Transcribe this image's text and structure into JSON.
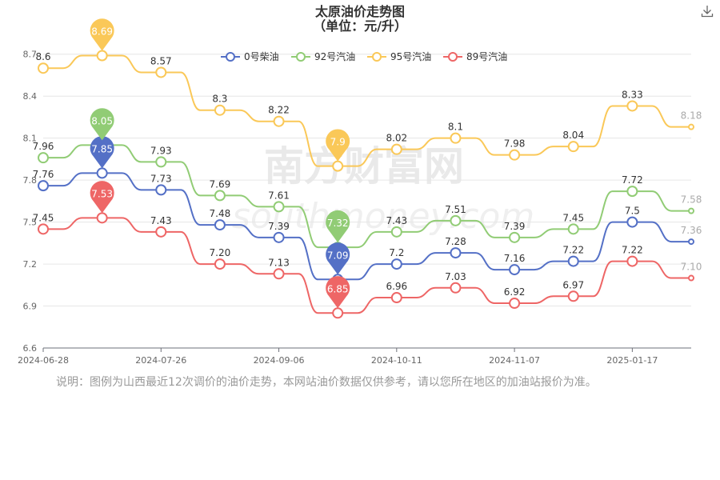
{
  "chart_data": {
    "type": "line",
    "title": "太原油价走势图",
    "subtitle": "（单位：元/升）",
    "x_tick_labels": [
      "2024-06-28",
      "2024-07-26",
      "2024-09-06",
      "2024-10-11",
      "2024-11-07",
      "2025-01-17"
    ],
    "y_ticks": [
      "6.6",
      "6.9",
      "7.2",
      "7.5",
      "7.8",
      "8.1",
      "8.4",
      "8.7"
    ],
    "ylim": [
      6.6,
      8.75
    ],
    "legend_position": "top",
    "series": [
      {
        "name": "0号柴油",
        "color": "#5470c6",
        "values": [
          7.76,
          7.85,
          7.73,
          7.48,
          7.39,
          7.09,
          7.2,
          7.28,
          7.16,
          7.22,
          7.5,
          7.36
        ],
        "labels": [
          "7.76",
          "7.85",
          "7.73",
          "7.48",
          "7.39",
          "7.09",
          "7.2",
          "7.28",
          "7.16",
          "7.22",
          "7.5",
          "7.36"
        ],
        "max_pin": "7.85",
        "min_pin": "7.09"
      },
      {
        "name": "92号汽油",
        "color": "#91cc75",
        "values": [
          7.96,
          8.05,
          7.93,
          7.69,
          7.61,
          7.32,
          7.43,
          7.51,
          7.39,
          7.45,
          7.72,
          7.58
        ],
        "labels": [
          "7.96",
          "8.05",
          "7.93",
          "7.69",
          "7.61",
          "7.32",
          "7.43",
          "7.51",
          "7.39",
          "7.45",
          "7.72",
          "7.58"
        ],
        "max_pin": "8.05",
        "min_pin": "7.32"
      },
      {
        "name": "95号汽油",
        "color": "#fac858",
        "values": [
          8.6,
          8.69,
          8.57,
          8.3,
          8.22,
          7.9,
          8.02,
          8.1,
          7.98,
          8.04,
          8.33,
          8.18
        ],
        "labels": [
          "8.6",
          "8.69",
          "8.57",
          "8.3",
          "8.22",
          "7.9",
          "8.02",
          "8.1",
          "7.98",
          "8.04",
          "8.33",
          "8.18"
        ],
        "max_pin": "8.69",
        "min_pin": "7.9"
      },
      {
        "name": "89号汽油",
        "color": "#ee6666",
        "values": [
          7.45,
          7.53,
          7.43,
          7.2,
          7.13,
          6.85,
          6.96,
          7.03,
          6.92,
          6.97,
          7.22,
          7.1
        ],
        "labels": [
          "7.45",
          "7.53",
          "7.43",
          "7.20",
          "7.13",
          "6.85",
          "6.96",
          "7.03",
          "6.92",
          "6.97",
          "7.22",
          "7.10"
        ],
        "max_pin": "7.53",
        "min_pin": "6.85"
      }
    ]
  },
  "watermark": {
    "cn": "南方财富网",
    "en": "southmoney.com"
  },
  "note": "说明：图例为山西最近12次调价的油价走势，本网站油价数据仅供参考，请以您所在地区的加油站报价为准。",
  "icons": {
    "download": "download-icon"
  }
}
